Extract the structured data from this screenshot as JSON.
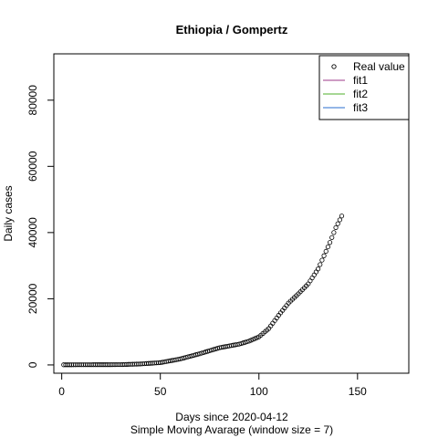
{
  "chart_data": {
    "type": "scatter",
    "title": "Ethiopia / Gompertz",
    "xlabel": "Days since 2020-04-12",
    "xlabel2": "Simple Moving Avarage (window size = 7)",
    "ylabel": "Daily cases",
    "xlim": [
      -4,
      176
    ],
    "ylim": [
      -2500,
      94000
    ],
    "xticks": [
      0,
      50,
      100,
      150
    ],
    "xtick_labels": [
      "0",
      "50",
      "100",
      "150"
    ],
    "yticks": [
      0,
      20000,
      40000,
      60000,
      80000
    ],
    "ytick_labels": [
      "0",
      "20000",
      "40000",
      "60000",
      "80000"
    ],
    "grid": false,
    "legend_position": "top-right",
    "legend": [
      {
        "label": "Real value",
        "kind": "point",
        "color": "#000000"
      },
      {
        "label": "fit1",
        "kind": "line",
        "color": "#9e3a8a"
      },
      {
        "label": "fit2",
        "kind": "line",
        "color": "#4caf2a"
      },
      {
        "label": "fit3",
        "kind": "line",
        "color": "#2a6ccf"
      }
    ],
    "series": [
      {
        "name": "Real value",
        "anchors_x": [
          1,
          30,
          40,
          50,
          60,
          70,
          80,
          90,
          95,
          100,
          105,
          110,
          115,
          120,
          125,
          130,
          133,
          136,
          139,
          142
        ],
        "anchors_y": [
          50,
          100,
          300,
          700,
          1800,
          3400,
          5200,
          6300,
          7200,
          8500,
          11000,
          15000,
          18700,
          21500,
          24500,
          29000,
          33000,
          37000,
          41500,
          45000
        ],
        "x_start": 1,
        "x_end": 142
      }
    ]
  }
}
